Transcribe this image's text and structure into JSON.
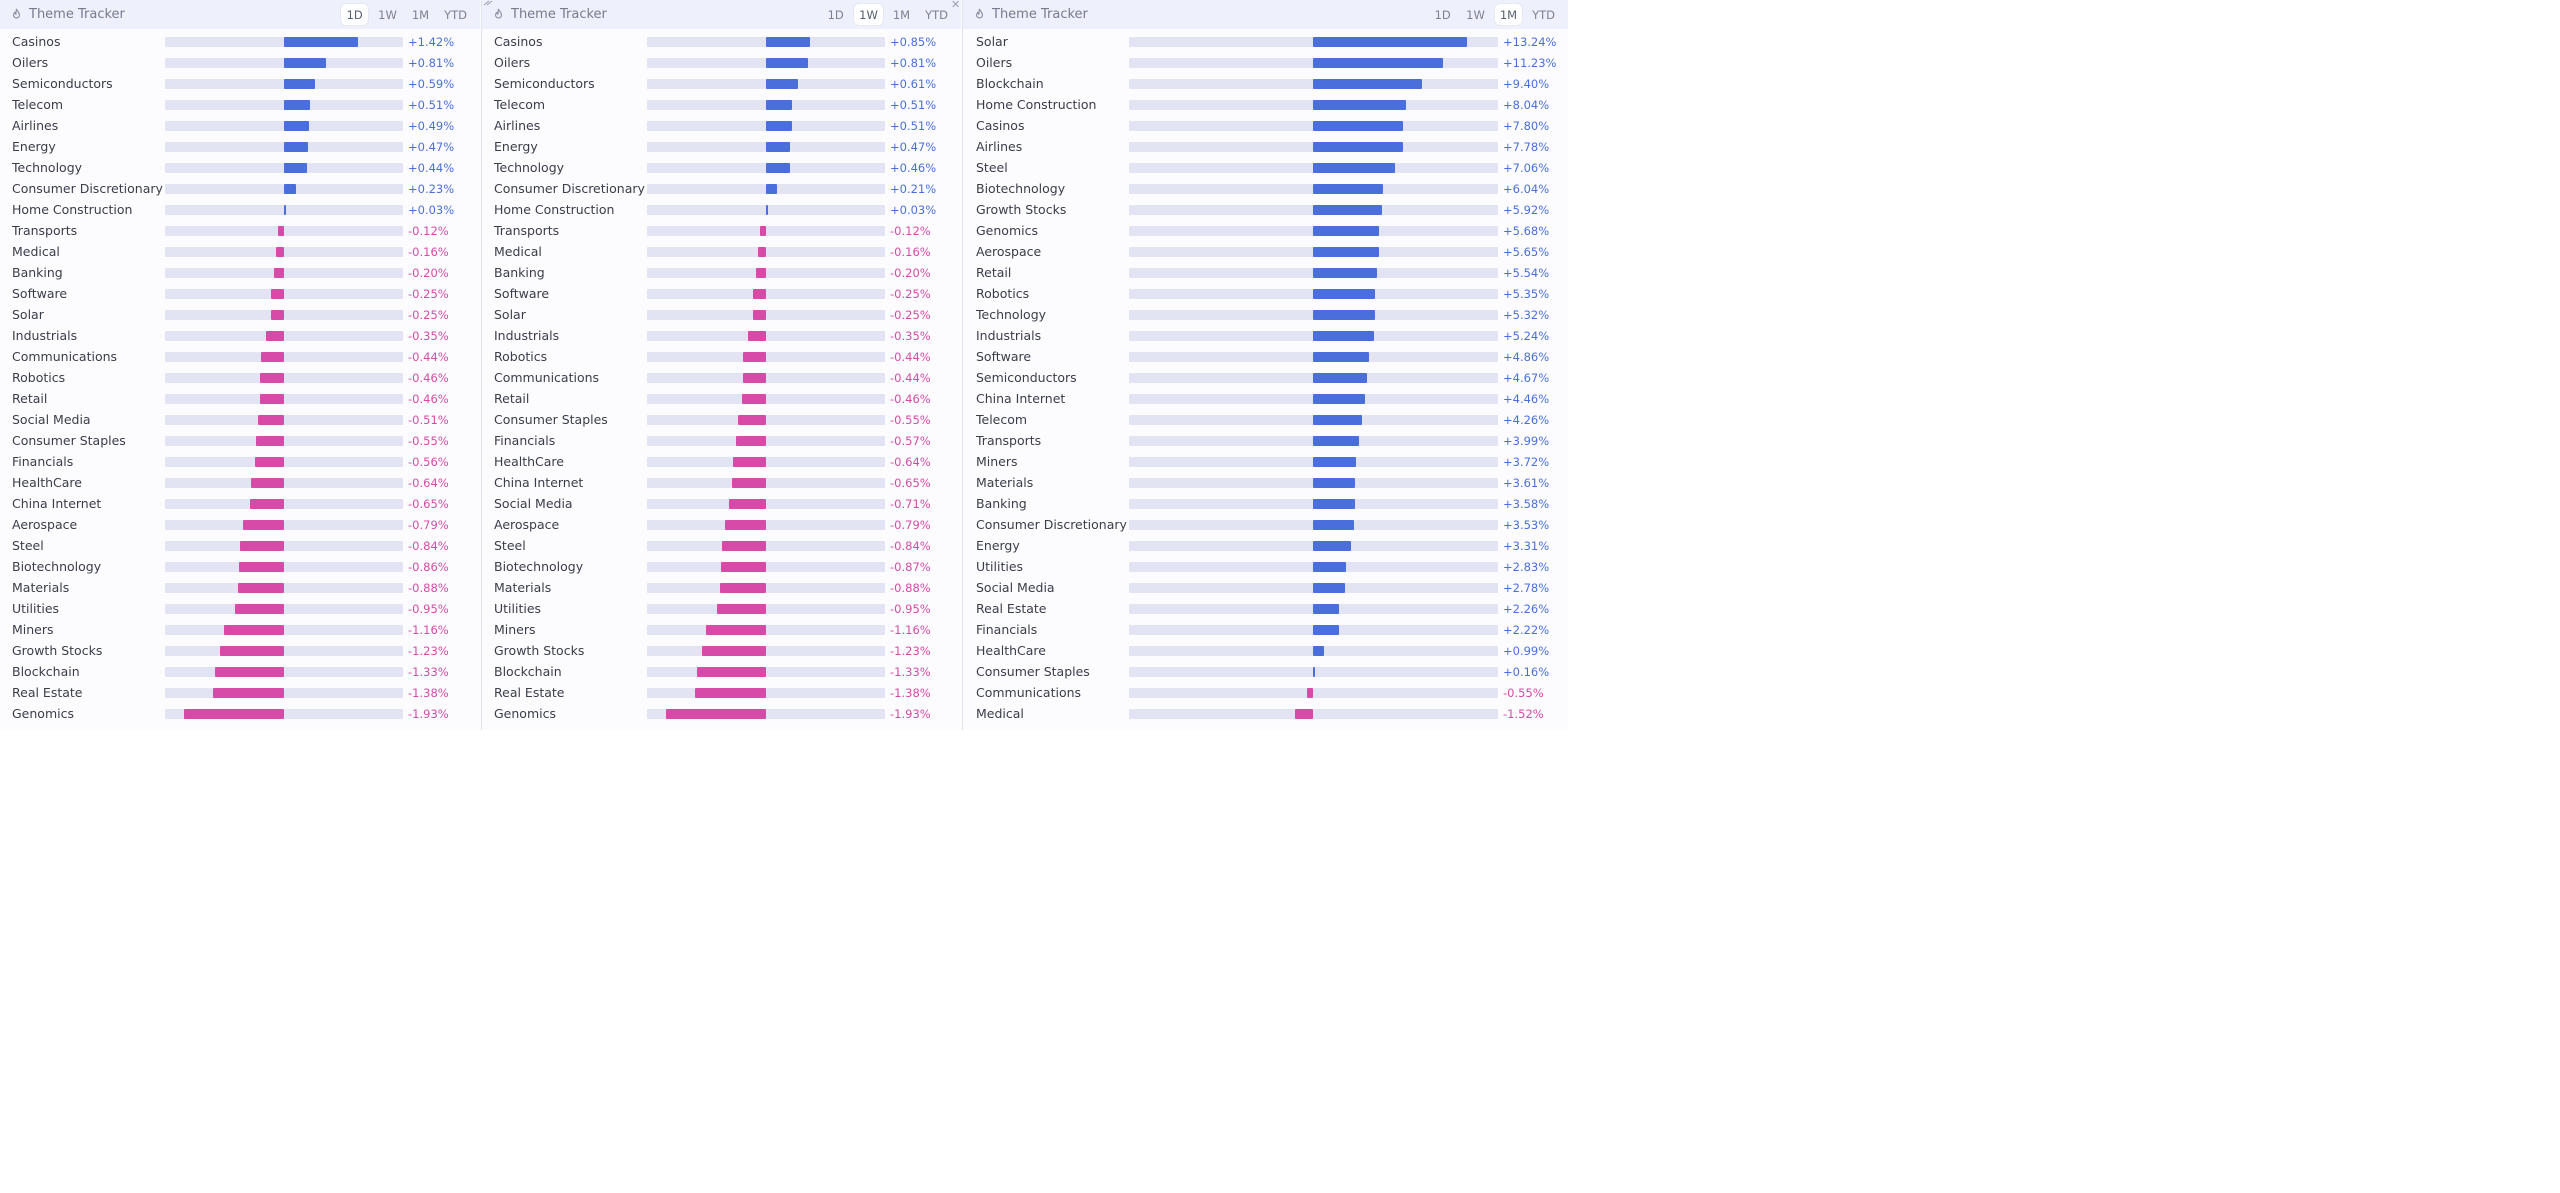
{
  "colors": {
    "positive": "#4a6fdc",
    "negative": "#d74aa8",
    "track": "#e3e4f3"
  },
  "panels": [
    {
      "title": "Theme Tracker",
      "tabs": [
        "1D",
        "1W",
        "1M",
        "YTD"
      ],
      "active_tab": "1D",
      "chart_data": {
        "type": "bar",
        "orientation": "horizontal",
        "period": "1D",
        "scale_max": 3.8,
        "categories": [
          "Casinos",
          "Oilers",
          "Semiconductors",
          "Telecom",
          "Airlines",
          "Energy",
          "Technology",
          "Consumer Discretionary",
          "Home Construction",
          "Transports",
          "Medical",
          "Banking",
          "Software",
          "Solar",
          "Industrials",
          "Communications",
          "Robotics",
          "Retail",
          "Social Media",
          "Consumer Staples",
          "Financials",
          "HealthCare",
          "China Internet",
          "Aerospace",
          "Steel",
          "Biotechnology",
          "Materials",
          "Utilities",
          "Miners",
          "Growth Stocks",
          "Blockchain",
          "Real Estate",
          "Genomics"
        ],
        "values": [
          1.42,
          0.81,
          0.59,
          0.51,
          0.49,
          0.47,
          0.44,
          0.23,
          0.03,
          -0.12,
          -0.16,
          -0.2,
          -0.25,
          -0.25,
          -0.35,
          -0.44,
          -0.46,
          -0.46,
          -0.51,
          -0.55,
          -0.56,
          -0.64,
          -0.65,
          -0.79,
          -0.84,
          -0.86,
          -0.88,
          -0.95,
          -1.16,
          -1.23,
          -1.33,
          -1.38,
          -1.93
        ],
        "labels": [
          "+1.42%",
          "+0.81%",
          "+0.59%",
          "+0.51%",
          "+0.49%",
          "+0.47%",
          "+0.44%",
          "+0.23%",
          "+0.03%",
          "-0.12%",
          "-0.16%",
          "-0.20%",
          "-0.25%",
          "-0.25%",
          "-0.35%",
          "-0.44%",
          "-0.46%",
          "-0.46%",
          "-0.51%",
          "-0.55%",
          "-0.56%",
          "-0.64%",
          "-0.65%",
          "-0.79%",
          "-0.84%",
          "-0.86%",
          "-0.88%",
          "-0.95%",
          "-1.16%",
          "-1.23%",
          "-1.33%",
          "-1.38%",
          "-1.93%"
        ]
      }
    },
    {
      "title": "Theme Tracker",
      "tabs": [
        "1D",
        "1W",
        "1M",
        "YTD"
      ],
      "active_tab": "1W",
      "chart_data": {
        "type": "bar",
        "orientation": "horizontal",
        "period": "1W",
        "scale_max": 3.8,
        "categories": [
          "Casinos",
          "Oilers",
          "Semiconductors",
          "Telecom",
          "Airlines",
          "Energy",
          "Technology",
          "Consumer Discretionary",
          "Home Construction",
          "Transports",
          "Medical",
          "Banking",
          "Software",
          "Solar",
          "Industrials",
          "Robotics",
          "Communications",
          "Retail",
          "Consumer Staples",
          "Financials",
          "HealthCare",
          "China Internet",
          "Social Media",
          "Aerospace",
          "Steel",
          "Biotechnology",
          "Materials",
          "Utilities",
          "Miners",
          "Growth Stocks",
          "Blockchain",
          "Real Estate",
          "Genomics"
        ],
        "values": [
          0.85,
          0.81,
          0.61,
          0.51,
          0.51,
          0.47,
          0.46,
          0.21,
          0.03,
          -0.12,
          -0.16,
          -0.2,
          -0.25,
          -0.25,
          -0.35,
          -0.44,
          -0.44,
          -0.46,
          -0.55,
          -0.57,
          -0.64,
          -0.65,
          -0.71,
          -0.79,
          -0.84,
          -0.87,
          -0.88,
          -0.95,
          -1.16,
          -1.23,
          -1.33,
          -1.38,
          -1.93
        ],
        "labels": [
          "+0.85%",
          "+0.81%",
          "+0.61%",
          "+0.51%",
          "+0.51%",
          "+0.47%",
          "+0.46%",
          "+0.21%",
          "+0.03%",
          "-0.12%",
          "-0.16%",
          "-0.20%",
          "-0.25%",
          "-0.25%",
          "-0.35%",
          "-0.44%",
          "-0.44%",
          "-0.46%",
          "-0.55%",
          "-0.57%",
          "-0.64%",
          "-0.65%",
          "-0.71%",
          "-0.79%",
          "-0.84%",
          "-0.87%",
          "-0.88%",
          "-0.95%",
          "-1.16%",
          "-1.23%",
          "-1.33%",
          "-1.38%",
          "-1.93%"
        ]
      }
    },
    {
      "title": "Theme Tracker",
      "tabs": [
        "1D",
        "1W",
        "1M",
        "YTD"
      ],
      "active_tab": "1M",
      "chart_data": {
        "type": "bar",
        "orientation": "horizontal",
        "period": "1M",
        "scale_max": 15.0,
        "categories": [
          "Solar",
          "Oilers",
          "Blockchain",
          "Home Construction",
          "Casinos",
          "Airlines",
          "Steel",
          "Biotechnology",
          "Growth Stocks",
          "Genomics",
          "Aerospace",
          "Retail",
          "Robotics",
          "Technology",
          "Industrials",
          "Software",
          "Semiconductors",
          "China Internet",
          "Telecom",
          "Transports",
          "Miners",
          "Materials",
          "Banking",
          "Consumer Discretionary",
          "Energy",
          "Utilities",
          "Social Media",
          "Real Estate",
          "Financials",
          "HealthCare",
          "Consumer Staples",
          "Communications",
          "Medical"
        ],
        "values": [
          13.24,
          11.23,
          9.4,
          8.04,
          7.8,
          7.78,
          7.06,
          6.04,
          5.92,
          5.68,
          5.65,
          5.54,
          5.35,
          5.32,
          5.24,
          4.86,
          4.67,
          4.46,
          4.26,
          3.99,
          3.72,
          3.61,
          3.58,
          3.53,
          3.31,
          2.83,
          2.78,
          2.26,
          2.22,
          0.99,
          0.16,
          -0.55,
          -1.52
        ],
        "labels": [
          "+13.24%",
          "+11.23%",
          "+9.40%",
          "+8.04%",
          "+7.80%",
          "+7.78%",
          "+7.06%",
          "+6.04%",
          "+5.92%",
          "+5.68%",
          "+5.65%",
          "+5.54%",
          "+5.35%",
          "+5.32%",
          "+5.24%",
          "+4.86%",
          "+4.67%",
          "+4.46%",
          "+4.26%",
          "+3.99%",
          "+3.72%",
          "+3.61%",
          "+3.58%",
          "+3.53%",
          "+3.31%",
          "+2.83%",
          "+2.78%",
          "+2.26%",
          "+2.22%",
          "+0.99%",
          "+0.16%",
          "-0.55%",
          "-1.52%"
        ]
      }
    }
  ]
}
